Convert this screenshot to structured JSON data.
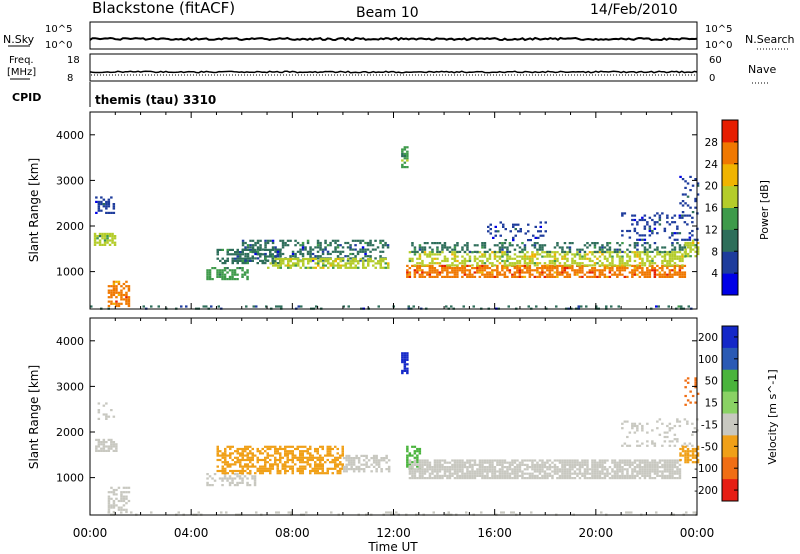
{
  "header": {
    "title": "Blackstone (fitACF)",
    "beam": "Beam 10",
    "date": "14/Feb/2010"
  },
  "nsky_panel": {
    "left_label": "N.Sky",
    "left_ticks": [
      "10^5",
      "10^0"
    ],
    "right_label": "N.Search",
    "right_ticks": [
      "10^5",
      "10^0"
    ]
  },
  "freq_panel": {
    "left_label_1": "Freq.",
    "left_label_2": "[MHz]",
    "left_ticks": [
      "18",
      "8"
    ],
    "right_label": "Nave",
    "right_ticks": [
      "60",
      "0"
    ]
  },
  "cpid_panel": {
    "label": "CPID",
    "value": "themis (tau) 3310"
  },
  "chart_data": [
    {
      "type": "heatmap",
      "name": "power",
      "xlabel": "Time UT",
      "ylabel": "Slant Range [km]",
      "colorbar_label": "Power [dB]",
      "x_ticks": [
        "00:00",
        "04:00",
        "08:00",
        "12:00",
        "16:00",
        "20:00",
        "00:00"
      ],
      "x_range_hours": [
        0,
        24
      ],
      "y_ticks": [
        1000,
        2000,
        3000,
        4000
      ],
      "ylim": [
        180,
        4500
      ],
      "colorbar_ticks": [
        4,
        8,
        12,
        16,
        20,
        24,
        28
      ],
      "colorbar_colors": [
        "#0000e6",
        "#1e3c9c",
        "#2e6e5a",
        "#3e9a4a",
        "#b4cc2a",
        "#f0b400",
        "#f07800",
        "#e61e00"
      ],
      "colorbar_range": [
        0,
        32
      ],
      "bands": [
        {
          "t0": 0.2,
          "t1": 0.9,
          "r0": 2300,
          "r1": 2650,
          "value": 6,
          "density": 0.35
        },
        {
          "t0": 0.15,
          "t1": 1.0,
          "r0": 1600,
          "r1": 1850,
          "value": 16,
          "density": 0.75
        },
        {
          "t0": 0.7,
          "t1": 1.5,
          "r0": 250,
          "r1": 800,
          "value": 26,
          "density": 0.6
        },
        {
          "t0": 4.6,
          "t1": 6.2,
          "r0": 850,
          "r1": 1100,
          "value": 14,
          "density": 0.55
        },
        {
          "t0": 5.0,
          "t1": 7.5,
          "r0": 1200,
          "r1": 1500,
          "value": 10,
          "density": 0.55
        },
        {
          "t0": 6.0,
          "t1": 11.8,
          "r0": 1250,
          "r1": 1700,
          "value": 8,
          "density": 0.45
        },
        {
          "t0": 7.0,
          "t1": 11.8,
          "r0": 1100,
          "r1": 1300,
          "value": 18,
          "density": 0.6
        },
        {
          "t0": 12.3,
          "t1": 12.5,
          "r0": 3300,
          "r1": 3750,
          "value": 14,
          "density": 0.7
        },
        {
          "t0": 12.5,
          "t1": 23.5,
          "r0": 900,
          "r1": 1150,
          "value": 27,
          "density": 0.7
        },
        {
          "t0": 12.6,
          "t1": 23.5,
          "r0": 1150,
          "r1": 1450,
          "value": 19,
          "density": 0.55
        },
        {
          "t0": 12.6,
          "t1": 23.5,
          "r0": 1450,
          "r1": 1650,
          "value": 10,
          "density": 0.4
        },
        {
          "t0": 15.5,
          "t1": 18.0,
          "r0": 1700,
          "r1": 2100,
          "value": 6,
          "density": 0.2
        },
        {
          "t0": 21.0,
          "t1": 24.0,
          "r0": 1700,
          "r1": 2300,
          "value": 6,
          "density": 0.25
        },
        {
          "t0": 23.3,
          "t1": 24.0,
          "r0": 2300,
          "r1": 3100,
          "value": 6,
          "density": 0.2
        },
        {
          "t0": 23.5,
          "t1": 24.0,
          "r0": 1350,
          "r1": 1700,
          "value": 18,
          "density": 0.7
        },
        {
          "t0": 0.0,
          "t1": 24.0,
          "r0": 180,
          "r1": 260,
          "value": 8,
          "density": 0.18
        }
      ]
    },
    {
      "type": "heatmap",
      "name": "velocity",
      "xlabel": "Time UT",
      "ylabel": "Slant Range [km]",
      "colorbar_label": "Velocity [m s^-1]",
      "x_ticks": [
        "00:00",
        "04:00",
        "08:00",
        "12:00",
        "16:00",
        "20:00",
        "00:00"
      ],
      "x_range_hours": [
        0,
        24
      ],
      "y_ticks": [
        1000,
        2000,
        3000,
        4000
      ],
      "ylim": [
        180,
        4500
      ],
      "colorbar_ticks": [
        "200",
        "100",
        "50",
        "15",
        "-15",
        "-50",
        "-100",
        "-200"
      ],
      "colorbar_colors": [
        "#1428c8",
        "#2a5ab4",
        "#4ab43c",
        "#8ad264",
        "#c8c8c0",
        "#f0a018",
        "#f06e14",
        "#e61e14"
      ],
      "bands": [
        {
          "t0": 0.2,
          "t1": 1.0,
          "r0": 1600,
          "r1": 1850,
          "value": "-15",
          "density": 0.7
        },
        {
          "t0": 0.2,
          "t1": 0.9,
          "r0": 2300,
          "r1": 2650,
          "value": "-15",
          "density": 0.3
        },
        {
          "t0": 0.7,
          "t1": 1.5,
          "r0": 250,
          "r1": 800,
          "value": "-15",
          "density": 0.5
        },
        {
          "t0": 4.6,
          "t1": 6.5,
          "r0": 850,
          "r1": 1100,
          "value": "-15",
          "density": 0.5
        },
        {
          "t0": 5.0,
          "t1": 10.0,
          "r0": 1100,
          "r1": 1700,
          "value": "-50",
          "density": 0.6
        },
        {
          "t0": 10.0,
          "t1": 11.8,
          "r0": 1150,
          "r1": 1500,
          "value": "-15",
          "density": 0.5
        },
        {
          "t0": 12.3,
          "t1": 12.5,
          "r0": 3300,
          "r1": 3750,
          "value": "200",
          "density": 0.8
        },
        {
          "t0": 12.5,
          "t1": 13.0,
          "r0": 1200,
          "r1": 1700,
          "value": "50",
          "density": 0.5
        },
        {
          "t0": 12.6,
          "t1": 23.3,
          "r0": 1000,
          "r1": 1400,
          "value": "-15",
          "density": 0.8
        },
        {
          "t0": 21.0,
          "t1": 24.0,
          "r0": 1700,
          "r1": 2300,
          "value": "-15",
          "density": 0.2
        },
        {
          "t0": 23.3,
          "t1": 24.0,
          "r0": 1350,
          "r1": 1700,
          "value": "-50",
          "density": 0.6
        },
        {
          "t0": 23.5,
          "t1": 24.0,
          "r0": 2600,
          "r1": 3200,
          "value": "-100",
          "density": 0.2
        },
        {
          "t0": 0.0,
          "t1": 24.0,
          "r0": 180,
          "r1": 260,
          "value": "-15",
          "density": 0.15
        }
      ]
    }
  ]
}
